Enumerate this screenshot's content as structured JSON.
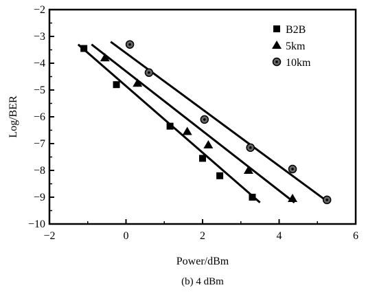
{
  "chart_data": {
    "type": "scatter",
    "title": "",
    "caption": "(b) 4 dBm",
    "xlabel": "Power/dBm",
    "ylabel": "Log/BER",
    "xlim": [
      -2,
      6
    ],
    "ylim": [
      -10,
      -2
    ],
    "xticks": [
      -2,
      0,
      2,
      4,
      6
    ],
    "yticks": [
      -10,
      -9,
      -8,
      -7,
      -6,
      -5,
      -4,
      -3,
      -2
    ],
    "legend_position": "top-right",
    "grid": false,
    "series": [
      {
        "name": "B2B",
        "marker": "square",
        "x": [
          -1.1,
          -0.25,
          1.15,
          2.0,
          2.45,
          3.3
        ],
        "y": [
          -3.45,
          -4.8,
          -6.35,
          -7.55,
          -8.2,
          -9.0
        ],
        "fit": {
          "x": [
            -1.25,
            3.5
          ],
          "y": [
            -3.3,
            -9.2
          ]
        }
      },
      {
        "name": "5km",
        "marker": "triangle",
        "x": [
          -0.55,
          0.3,
          1.6,
          2.15,
          3.2,
          4.35
        ],
        "y": [
          -3.8,
          -4.75,
          -6.55,
          -7.05,
          -8.0,
          -9.05
        ],
        "fit": {
          "x": [
            -0.9,
            4.4
          ],
          "y": [
            -3.3,
            -9.2
          ]
        }
      },
      {
        "name": "10km",
        "marker": "circle",
        "x": [
          0.1,
          0.6,
          2.05,
          3.25,
          4.35,
          5.25
        ],
        "y": [
          -3.3,
          -4.35,
          -6.1,
          -7.15,
          -7.95,
          -9.1
        ],
        "fit": {
          "x": [
            -0.4,
            5.25
          ],
          "y": [
            -3.2,
            -9.15
          ]
        }
      }
    ]
  }
}
